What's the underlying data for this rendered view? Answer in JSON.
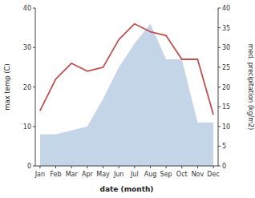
{
  "chart_data": {
    "type": "line",
    "xlabel": "date (month)",
    "ylabel": "max temp (C)",
    "y2label": "med. precipitation (kg/m2)",
    "categories": [
      "Jan",
      "Feb",
      "Mar",
      "Apr",
      "May",
      "Jun",
      "Jul",
      "Aug",
      "Sep",
      "Oct",
      "Nov",
      "Dec"
    ],
    "series": [
      {
        "type": "area",
        "axis": "y2",
        "color": "#c5d5e8",
        "values": [
          8,
          8,
          9,
          10,
          17,
          25,
          31,
          36,
          27,
          27,
          11,
          11
        ]
      },
      {
        "type": "line",
        "color": "#c0504d",
        "values": [
          14,
          22,
          26,
          24,
          25,
          32,
          36,
          34,
          33,
          27,
          27,
          13
        ]
      }
    ],
    "ylim": [
      0,
      40
    ],
    "yticks": [
      0,
      10,
      20,
      30,
      40
    ],
    "y2lim": [
      0,
      40
    ],
    "y2ticks": [
      0,
      5,
      10,
      15,
      20,
      25,
      30,
      35,
      40
    ],
    "grid": false
  }
}
